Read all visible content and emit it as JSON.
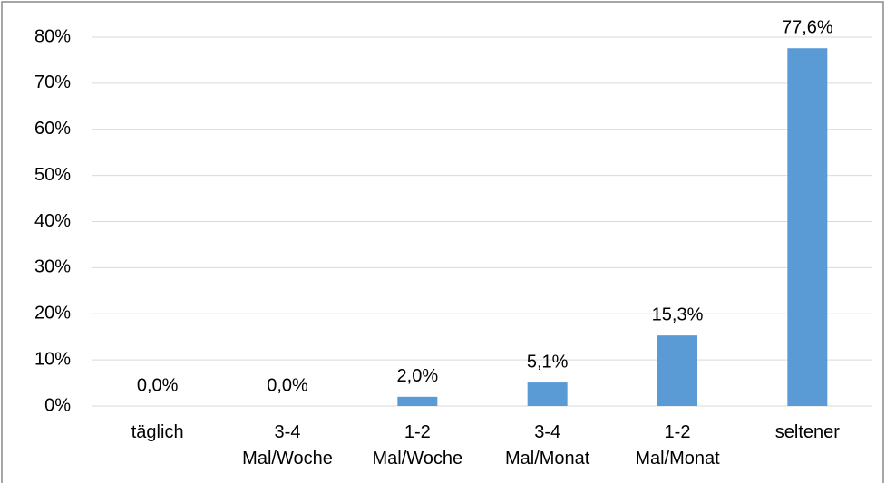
{
  "chart_data": {
    "type": "bar",
    "categories": [
      "täglich",
      "3-4 Mal/Woche",
      "1-2 Mal/Woche",
      "3-4 Mal/Monat",
      "1-2 Mal/Monat",
      "seltener"
    ],
    "values": [
      0.0,
      0.0,
      2.0,
      5.1,
      15.3,
      77.6
    ],
    "value_labels": [
      "0,0%",
      "0,0%",
      "2,0%",
      "5,1%",
      "15,3%",
      "77,6%"
    ],
    "color": "#5b9bd5",
    "ylim": [
      0,
      80
    ],
    "yticks": [
      {
        "value": 0,
        "label": "0%"
      },
      {
        "value": 10,
        "label": "10%"
      },
      {
        "value": 20,
        "label": "20%"
      },
      {
        "value": 30,
        "label": "30%"
      },
      {
        "value": 40,
        "label": "40%"
      },
      {
        "value": 50,
        "label": "50%"
      },
      {
        "value": 60,
        "label": "60%"
      },
      {
        "value": 70,
        "label": "70%"
      },
      {
        "value": 80,
        "label": "80%"
      }
    ],
    "grid": true
  }
}
